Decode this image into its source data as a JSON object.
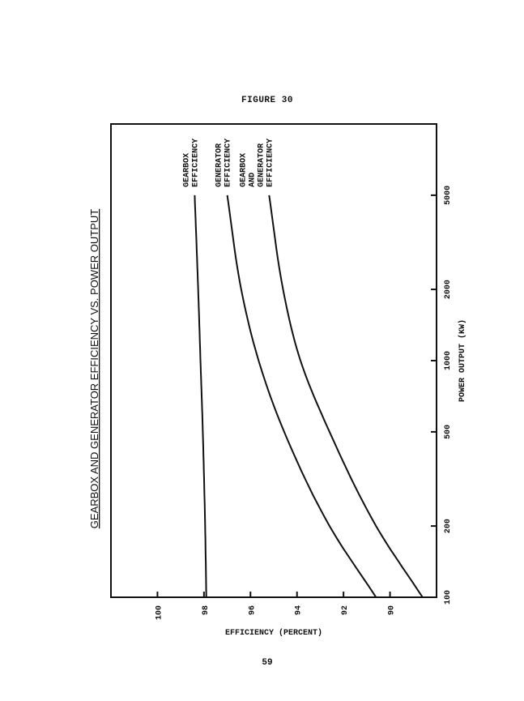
{
  "figure_label": "FIGURE 30",
  "page_number": "59",
  "chart_data": {
    "type": "line",
    "title": "GEARBOX AND GENERATOR EFFICIENCY VS. POWER OUTPUT",
    "xlabel": "POWER OUTPUT (KW)",
    "ylabel": "EFFICIENCY (PERCENT)",
    "x_scale": "log",
    "xlim": [
      100,
      10000
    ],
    "ylim": [
      88,
      102
    ],
    "x_ticks": [
      100,
      200,
      500,
      1000,
      2000,
      5000
    ],
    "x_tick_labels": [
      "100",
      "200",
      "500",
      "1000",
      "2000",
      "5000"
    ],
    "y_ticks": [
      90,
      92,
      94,
      96,
      98,
      100
    ],
    "y_tick_labels": [
      "90",
      "92",
      "94",
      "96",
      "98",
      "100"
    ],
    "grid": false,
    "orientation": "rotated 90 degrees counter-clockwise",
    "series": [
      {
        "name": "GEARBOX EFFICIENCY",
        "label_lines": [
          "GEARBOX",
          "EFFICIENCY"
        ],
        "x": [
          100,
          200,
          500,
          1000,
          2000,
          5000
        ],
        "y": [
          97.9,
          97.95,
          98.05,
          98.15,
          98.25,
          98.4
        ]
      },
      {
        "name": "GENERATOR EFFICIENCY",
        "label_lines": [
          "GENERATOR",
          "EFFICIENCY"
        ],
        "x": [
          100,
          200,
          500,
          1000,
          2000,
          5000
        ],
        "y": [
          90.6,
          92.6,
          94.55,
          95.65,
          96.4,
          97.0
        ]
      },
      {
        "name": "GEARBOX AND GENERATOR EFFICIENCY",
        "label_lines": [
          "GEARBOX",
          "AND",
          "GENERATOR",
          "EFFICIENCY"
        ],
        "x": [
          100,
          200,
          500,
          1000,
          2000,
          5000
        ],
        "y": [
          88.6,
          90.6,
          92.6,
          93.85,
          94.6,
          95.2
        ]
      }
    ]
  }
}
